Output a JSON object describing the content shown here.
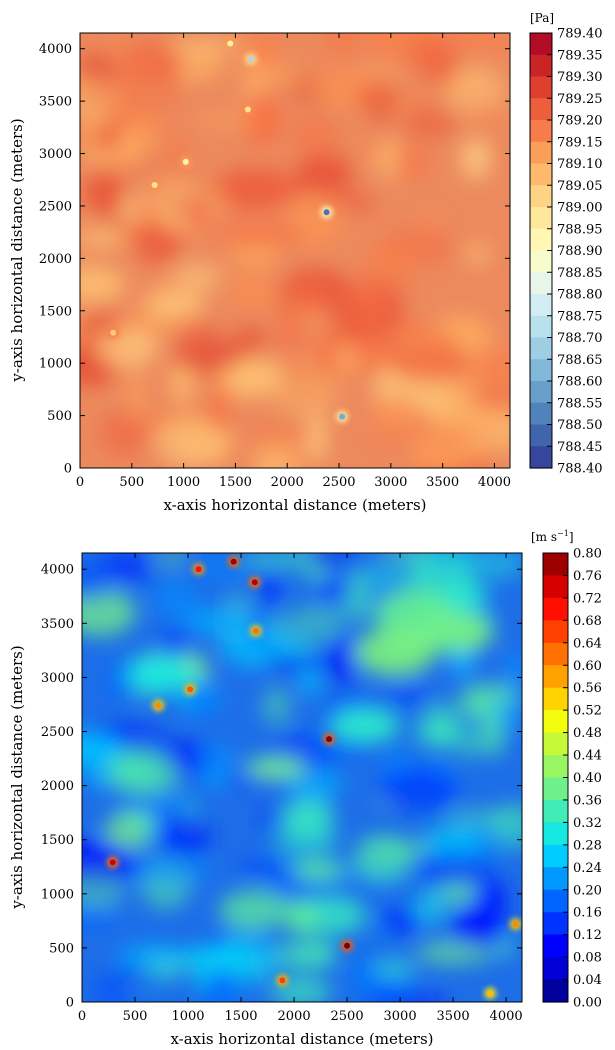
{
  "chart_data": [
    {
      "type": "heatmap",
      "title": "",
      "xlabel": "x-axis horizontal distance (meters)",
      "ylabel": "y-axis horizontal distance (meters)",
      "xlim": [
        0,
        4150
      ],
      "ylim": [
        0,
        4150
      ],
      "xticks": [
        0,
        500,
        1000,
        1500,
        2000,
        2500,
        3000,
        3500,
        4000
      ],
      "yticks": [
        0,
        500,
        1000,
        1500,
        2000,
        2500,
        3000,
        3500,
        4000
      ],
      "colorbar": {
        "label": "[Pa]",
        "colormap": "RdYlBu_r",
        "range": [
          788.4,
          789.4
        ],
        "ticks": [
          "789.40",
          "789.35",
          "789.30",
          "789.25",
          "789.20",
          "789.15",
          "789.10",
          "789.05",
          "789.00",
          "788.95",
          "788.90",
          "788.85",
          "788.80",
          "788.75",
          "788.70",
          "788.65",
          "788.60",
          "788.55",
          "788.50",
          "788.45",
          "788.40"
        ]
      },
      "field_background": "#ec8a5e",
      "features": [
        {
          "x": 2380,
          "y": 2440,
          "value": 788.5,
          "kind": "low-pressure spot"
        },
        {
          "x": 2530,
          "y": 490,
          "value": 788.6,
          "kind": "low-pressure spot"
        },
        {
          "x": 1650,
          "y": 3900,
          "value": 788.7,
          "kind": "low-pressure spot"
        },
        {
          "x": 1020,
          "y": 2920,
          "value": 788.95,
          "kind": "light spot"
        },
        {
          "x": 1450,
          "y": 4050,
          "value": 788.95,
          "kind": "light spot"
        },
        {
          "x": 1620,
          "y": 3420,
          "value": 789.0,
          "kind": "light spot"
        },
        {
          "x": 720,
          "y": 2700,
          "value": 789.0,
          "kind": "light spot"
        },
        {
          "x": 320,
          "y": 1290,
          "value": 789.05,
          "kind": "light spot"
        }
      ]
    },
    {
      "type": "heatmap",
      "title": "",
      "xlabel": "x-axis horizontal distance (meters)",
      "ylabel": "y-axis horizontal distance (meters)",
      "xlim": [
        0,
        4150
      ],
      "ylim": [
        0,
        4150
      ],
      "xticks": [
        0,
        500,
        1000,
        1500,
        2000,
        2500,
        3000,
        3500,
        4000
      ],
      "yticks": [
        0,
        500,
        1000,
        1500,
        2000,
        2500,
        3000,
        3500,
        4000
      ],
      "colorbar": {
        "label": "[m s",
        "label_sup": "−1",
        "label_end": "]",
        "colormap": "jet",
        "range": [
          0.0,
          0.8
        ],
        "ticks": [
          "0.80",
          "0.76",
          "0.72",
          "0.68",
          "0.64",
          "0.60",
          "0.56",
          "0.52",
          "0.48",
          "0.44",
          "0.40",
          "0.36",
          "0.32",
          "0.28",
          "0.24",
          "0.20",
          "0.16",
          "0.12",
          "0.08",
          "0.04",
          "0.00"
        ]
      },
      "field_background": "#1e6ee8",
      "features": [
        {
          "x": 2330,
          "y": 2430,
          "value": 0.8,
          "kind": "high-speed spot"
        },
        {
          "x": 2500,
          "y": 520,
          "value": 0.8,
          "kind": "high-speed spot"
        },
        {
          "x": 1430,
          "y": 4070,
          "value": 0.78,
          "kind": "high-speed spot"
        },
        {
          "x": 1630,
          "y": 3880,
          "value": 0.76,
          "kind": "high-speed spot"
        },
        {
          "x": 1100,
          "y": 4000,
          "value": 0.7,
          "kind": "high-speed spot"
        },
        {
          "x": 290,
          "y": 1290,
          "value": 0.74,
          "kind": "high-speed spot"
        },
        {
          "x": 1020,
          "y": 2890,
          "value": 0.64,
          "kind": "high-speed spot"
        },
        {
          "x": 1640,
          "y": 3430,
          "value": 0.62,
          "kind": "high-speed spot"
        },
        {
          "x": 720,
          "y": 2740,
          "value": 0.6,
          "kind": "high-speed spot"
        },
        {
          "x": 1890,
          "y": 200,
          "value": 0.66,
          "kind": "high-speed spot"
        },
        {
          "x": 4090,
          "y": 720,
          "value": 0.6,
          "kind": "high-speed spot"
        },
        {
          "x": 3850,
          "y": 80,
          "value": 0.56,
          "kind": "high-speed spot"
        }
      ]
    }
  ]
}
